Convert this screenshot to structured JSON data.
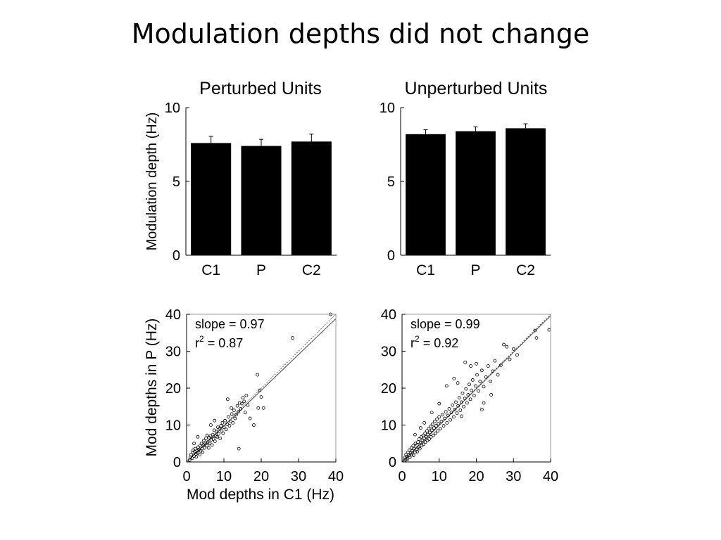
{
  "slide": {
    "title": "Modulation depths did not change"
  },
  "colors": {
    "bar": "#000000",
    "axis": "#000000",
    "fit_line": "#444444",
    "marker": "#000000",
    "background": "#ffffff"
  },
  "chart_data": [
    {
      "id": "bar-perturbed",
      "type": "bar",
      "title": "Perturbed Units",
      "ylabel": "Modulation depth (Hz)",
      "categories": [
        "C1",
        "P",
        "C2"
      ],
      "values": [
        7.6,
        7.4,
        7.7
      ],
      "errors": [
        0.45,
        0.45,
        0.5
      ],
      "ylim": [
        0,
        10
      ],
      "yticks": [
        0,
        5,
        10
      ]
    },
    {
      "id": "bar-unperturbed",
      "type": "bar",
      "title": "Unperturbed Units",
      "ylabel": "",
      "categories": [
        "C1",
        "P",
        "C2"
      ],
      "values": [
        8.2,
        8.4,
        8.6
      ],
      "errors": [
        0.3,
        0.3,
        0.3
      ],
      "ylim": [
        0,
        10
      ],
      "yticks": [
        0,
        5,
        10
      ]
    },
    {
      "id": "scatter-perturbed",
      "type": "scatter",
      "xlabel": "Mod depths in C1 (Hz)",
      "ylabel": "Mod depths in P (Hz)",
      "xlim": [
        0,
        40
      ],
      "ylim": [
        0,
        40
      ],
      "xticks": [
        0,
        10,
        20,
        30,
        40
      ],
      "yticks": [
        0,
        10,
        20,
        30,
        40
      ],
      "annotation": {
        "slope_text": "slope = 0.97",
        "r_text": "r",
        "r_sup": "2",
        "r_value_text": " = 0.87"
      },
      "fit": {
        "slope": 0.97
      },
      "identity_line": true,
      "points": [
        [
          0.8,
          0.5
        ],
        [
          1.0,
          1.2
        ],
        [
          1.2,
          2.0
        ],
        [
          1.5,
          1.0
        ],
        [
          1.6,
          2.6
        ],
        [
          1.8,
          3.2
        ],
        [
          2.0,
          1.6
        ],
        [
          2.2,
          2.8
        ],
        [
          2.3,
          3.6
        ],
        [
          2.5,
          2.2
        ],
        [
          2.6,
          1.4
        ],
        [
          2.8,
          3.0
        ],
        [
          3.0,
          2.4
        ],
        [
          3.1,
          4.0
        ],
        [
          3.3,
          3.4
        ],
        [
          3.5,
          2.0
        ],
        [
          3.6,
          4.4
        ],
        [
          3.8,
          3.0
        ],
        [
          4.0,
          5.0
        ],
        [
          4.1,
          3.6
        ],
        [
          4.3,
          2.6
        ],
        [
          4.5,
          4.6
        ],
        [
          4.6,
          5.8
        ],
        [
          4.8,
          3.8
        ],
        [
          5.0,
          5.0
        ],
        [
          5.2,
          6.4
        ],
        [
          5.4,
          4.4
        ],
        [
          5.5,
          7.2
        ],
        [
          5.7,
          5.4
        ],
        [
          5.9,
          3.8
        ],
        [
          6.0,
          6.6
        ],
        [
          6.2,
          5.0
        ],
        [
          6.4,
          7.0
        ],
        [
          6.6,
          6.0
        ],
        [
          6.8,
          4.6
        ],
        [
          7.0,
          7.4
        ],
        [
          7.2,
          6.2
        ],
        [
          7.4,
          8.6
        ],
        [
          7.6,
          5.6
        ],
        [
          7.8,
          7.0
        ],
        [
          8.0,
          8.2
        ],
        [
          8.2,
          6.8
        ],
        [
          8.4,
          9.4
        ],
        [
          8.6,
          7.6
        ],
        [
          8.8,
          9.0
        ],
        [
          9.0,
          6.4
        ],
        [
          9.2,
          9.8
        ],
        [
          9.4,
          8.4
        ],
        [
          9.6,
          10.6
        ],
        [
          9.8,
          7.8
        ],
        [
          10.0,
          9.4
        ],
        [
          10.3,
          11.2
        ],
        [
          10.6,
          8.8
        ],
        [
          10.9,
          10.2
        ],
        [
          11.2,
          12.2
        ],
        [
          11.5,
          9.8
        ],
        [
          11.8,
          11.0
        ],
        [
          12.1,
          13.0
        ],
        [
          12.4,
          10.6
        ],
        [
          12.7,
          14.0
        ],
        [
          13.0,
          11.8
        ],
        [
          13.3,
          12.8
        ],
        [
          13.6,
          15.2
        ],
        [
          13.9,
          13.6
        ],
        [
          14.2,
          16.0
        ],
        [
          14.5,
          14.4
        ],
        [
          14.8,
          15.8
        ],
        [
          15.1,
          17.4
        ],
        [
          15.4,
          16.4
        ],
        [
          15.7,
          13.4
        ],
        [
          16.0,
          18.0
        ],
        [
          16.4,
          15.4
        ],
        [
          17.0,
          11.8
        ],
        [
          18.0,
          10.0
        ],
        [
          19.2,
          14.6
        ],
        [
          19.6,
          19.4
        ],
        [
          20.0,
          17.6
        ],
        [
          20.6,
          14.6
        ],
        [
          19.0,
          23.6
        ],
        [
          14.0,
          3.6
        ],
        [
          12.0,
          14.6
        ],
        [
          11.0,
          17.0
        ],
        [
          28.4,
          33.6
        ],
        [
          38.6,
          40.0
        ],
        [
          6.5,
          10.0
        ],
        [
          7.5,
          11.2
        ],
        [
          3.0,
          6.8
        ],
        [
          2.0,
          5.0
        ]
      ]
    },
    {
      "id": "scatter-unperturbed",
      "type": "scatter",
      "xlabel": "",
      "ylabel": "",
      "xlim": [
        0,
        40
      ],
      "ylim": [
        0,
        40
      ],
      "xticks": [
        0,
        10,
        20,
        30,
        40
      ],
      "yticks": [
        0,
        10,
        20,
        30,
        40
      ],
      "annotation": {
        "slope_text": "slope = 0.99",
        "r_text": "r",
        "r_sup": "2",
        "r_value_text": " = 0.92"
      },
      "fit": {
        "slope": 0.99
      },
      "identity_line": true,
      "points": [
        [
          0.6,
          0.4
        ],
        [
          0.8,
          1.2
        ],
        [
          1.0,
          0.6
        ],
        [
          1.1,
          2.0
        ],
        [
          1.3,
          1.4
        ],
        [
          1.5,
          0.8
        ],
        [
          1.6,
          2.6
        ],
        [
          1.8,
          1.8
        ],
        [
          2.0,
          3.2
        ],
        [
          2.1,
          1.2
        ],
        [
          2.3,
          2.4
        ],
        [
          2.5,
          3.8
        ],
        [
          2.6,
          2.0
        ],
        [
          2.8,
          3.0
        ],
        [
          3.0,
          4.4
        ],
        [
          3.1,
          1.8
        ],
        [
          3.3,
          3.6
        ],
        [
          3.5,
          2.6
        ],
        [
          3.6,
          5.0
        ],
        [
          3.8,
          3.4
        ],
        [
          4.0,
          4.6
        ],
        [
          4.1,
          2.8
        ],
        [
          4.3,
          5.4
        ],
        [
          4.5,
          4.0
        ],
        [
          4.6,
          6.2
        ],
        [
          4.8,
          3.6
        ],
        [
          5.0,
          5.2
        ],
        [
          5.2,
          6.8
        ],
        [
          5.3,
          4.4
        ],
        [
          5.5,
          5.8
        ],
        [
          5.7,
          7.2
        ],
        [
          5.8,
          4.8
        ],
        [
          6.0,
          6.4
        ],
        [
          6.2,
          7.8
        ],
        [
          6.3,
          5.4
        ],
        [
          6.5,
          6.8
        ],
        [
          6.7,
          8.4
        ],
        [
          6.8,
          5.8
        ],
        [
          7.0,
          7.4
        ],
        [
          7.2,
          9.0
        ],
        [
          7.3,
          6.2
        ],
        [
          7.5,
          8.0
        ],
        [
          7.7,
          9.6
        ],
        [
          7.8,
          6.8
        ],
        [
          8.0,
          8.6
        ],
        [
          8.2,
          10.2
        ],
        [
          8.4,
          7.2
        ],
        [
          8.6,
          9.2
        ],
        [
          8.8,
          11.0
        ],
        [
          9.0,
          7.8
        ],
        [
          9.2,
          9.8
        ],
        [
          9.4,
          11.6
        ],
        [
          9.6,
          8.4
        ],
        [
          9.8,
          10.4
        ],
        [
          10.0,
          12.2
        ],
        [
          10.3,
          9.0
        ],
        [
          10.6,
          11.0
        ],
        [
          10.9,
          12.8
        ],
        [
          11.2,
          9.8
        ],
        [
          11.5,
          11.8
        ],
        [
          11.8,
          13.6
        ],
        [
          12.1,
          10.6
        ],
        [
          12.4,
          12.6
        ],
        [
          12.7,
          14.4
        ],
        [
          13.0,
          11.4
        ],
        [
          13.3,
          13.4
        ],
        [
          13.6,
          15.4
        ],
        [
          13.9,
          12.2
        ],
        [
          14.2,
          14.2
        ],
        [
          14.5,
          16.2
        ],
        [
          14.8,
          13.2
        ],
        [
          15.1,
          15.2
        ],
        [
          15.4,
          17.4
        ],
        [
          15.7,
          14.0
        ],
        [
          16.0,
          16.2
        ],
        [
          16.3,
          18.6
        ],
        [
          16.6,
          15.0
        ],
        [
          16.9,
          17.2
        ],
        [
          17.2,
          19.8
        ],
        [
          17.5,
          16.0
        ],
        [
          17.8,
          18.2
        ],
        [
          18.1,
          21.0
        ],
        [
          18.4,
          17.0
        ],
        [
          18.7,
          19.4
        ],
        [
          19.0,
          22.2
        ],
        [
          19.4,
          18.0
        ],
        [
          19.8,
          20.6
        ],
        [
          20.2,
          23.6
        ],
        [
          20.6,
          19.2
        ],
        [
          21.0,
          21.8
        ],
        [
          21.5,
          24.8
        ],
        [
          22.0,
          20.4
        ],
        [
          22.6,
          23.0
        ],
        [
          23.2,
          26.0
        ],
        [
          23.8,
          21.8
        ],
        [
          24.4,
          24.6
        ],
        [
          25.0,
          27.4
        ],
        [
          25.8,
          23.6
        ],
        [
          26.6,
          26.2
        ],
        [
          27.4,
          31.8
        ],
        [
          28.2,
          31.2
        ],
        [
          29.0,
          27.8
        ],
        [
          30.0,
          30.6
        ],
        [
          31.0,
          29.0
        ],
        [
          35.8,
          35.6
        ],
        [
          36.2,
          33.6
        ],
        [
          39.6,
          35.8
        ],
        [
          17.0,
          27.0
        ],
        [
          18.5,
          26.0
        ],
        [
          20.0,
          26.6
        ],
        [
          14.0,
          22.6
        ],
        [
          12.0,
          20.6
        ],
        [
          21.5,
          14.2
        ],
        [
          16.0,
          12.4
        ],
        [
          10.0,
          15.8
        ],
        [
          8.0,
          13.4
        ],
        [
          24.0,
          18.2
        ],
        [
          22.0,
          16.0
        ],
        [
          5.0,
          9.2
        ],
        [
          6.0,
          10.6
        ],
        [
          3.5,
          7.4
        ],
        [
          15.0,
          21.4
        ]
      ]
    }
  ]
}
